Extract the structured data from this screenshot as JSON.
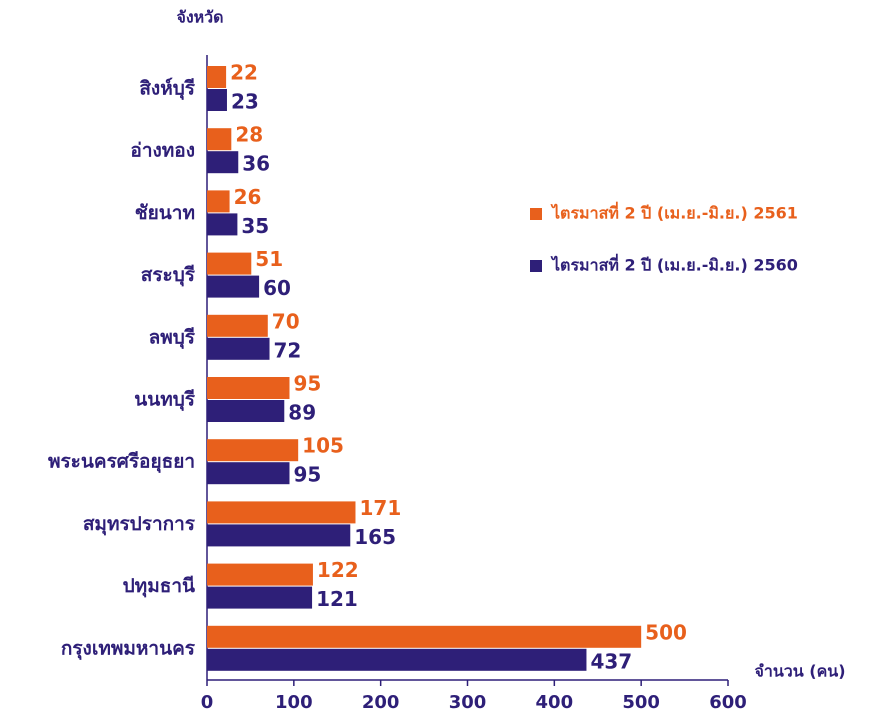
{
  "chart_data": {
    "type": "barh",
    "y_label": "จังหวัด",
    "x_label": "จำนวน (คน)",
    "categories": [
      "สิงห์บุรี",
      "อ่างทอง",
      "ชัยนาท",
      "สระบุรี",
      "ลพบุรี",
      "นนทบุรี",
      "พระนครศรีอยุธยา",
      "สมุทรปราการ",
      "ปทุมธานี",
      "กรุงเทพมหานคร"
    ],
    "series": [
      {
        "name": "ไตรมาสที่ 2 ปี (เม.ย.-มิ.ย.) 2561",
        "color": "#e8601c",
        "values": [
          22,
          28,
          26,
          51,
          70,
          95,
          105,
          171,
          122,
          500
        ]
      },
      {
        "name": "ไตรมาสที่ 2 ปี (เม.ย.-มิ.ย.) 2560",
        "color": "#2e1f78",
        "values": [
          23,
          36,
          35,
          60,
          72,
          89,
          95,
          165,
          121,
          437
        ]
      }
    ],
    "xlim": [
      0,
      600
    ],
    "xticks": [
      0,
      100,
      200,
      300,
      400,
      500,
      600
    ]
  }
}
